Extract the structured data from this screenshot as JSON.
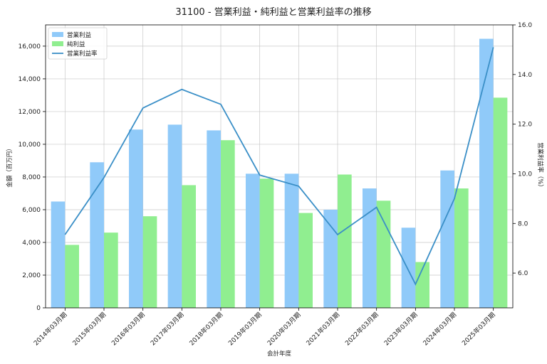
{
  "chart_data": {
    "type": "bar",
    "title": "31100 - 営業利益・純利益と営業利益率の推移",
    "xlabel": "会計年度",
    "ylabel": "金額（百万円）",
    "y2label": "営業利益率（%）",
    "categories": [
      "2014年03月期",
      "2015年03月期",
      "2016年03月期",
      "2017年03月期",
      "2018年03月期",
      "2019年03月期",
      "2020年03月期",
      "2021年03月期",
      "2022年03月期",
      "2023年03月期",
      "2024年03月期",
      "2025年03月期"
    ],
    "series": [
      {
        "name": "営業利益",
        "kind": "bar",
        "color": "#90caf9",
        "values": [
          6500,
          8900,
          10900,
          11200,
          10850,
          8200,
          8200,
          6000,
          7300,
          4900,
          8400,
          16450
        ]
      },
      {
        "name": "純利益",
        "kind": "bar",
        "color": "#90ee90",
        "values": [
          3850,
          4600,
          5600,
          7500,
          10250,
          7900,
          5800,
          8150,
          6550,
          2800,
          7300,
          12850
        ]
      },
      {
        "name": "営業利益率",
        "kind": "line",
        "axis": "right",
        "color": "#3a8fc7",
        "values": [
          7.55,
          9.85,
          12.65,
          13.4,
          12.8,
          9.95,
          9.5,
          7.55,
          8.65,
          5.55,
          9.0,
          15.1
        ]
      }
    ],
    "ylim": [
      0,
      17300
    ],
    "yticks": [
      0,
      2000,
      4000,
      6000,
      8000,
      10000,
      12000,
      14000,
      16000
    ],
    "yticklabels": [
      "0",
      "2,000",
      "4,000",
      "6,000",
      "8,000",
      "10,000",
      "12,000",
      "14,000",
      "16,000"
    ],
    "y2lim": [
      4.6,
      16.0
    ],
    "y2ticks": [
      6.0,
      8.0,
      10.0,
      12.0,
      14.0,
      16.0
    ],
    "y2ticklabels": [
      "6.0",
      "8.0",
      "10.0",
      "12.0",
      "14.0",
      "16.0"
    ],
    "grid": true,
    "legend_position": "top-left"
  }
}
